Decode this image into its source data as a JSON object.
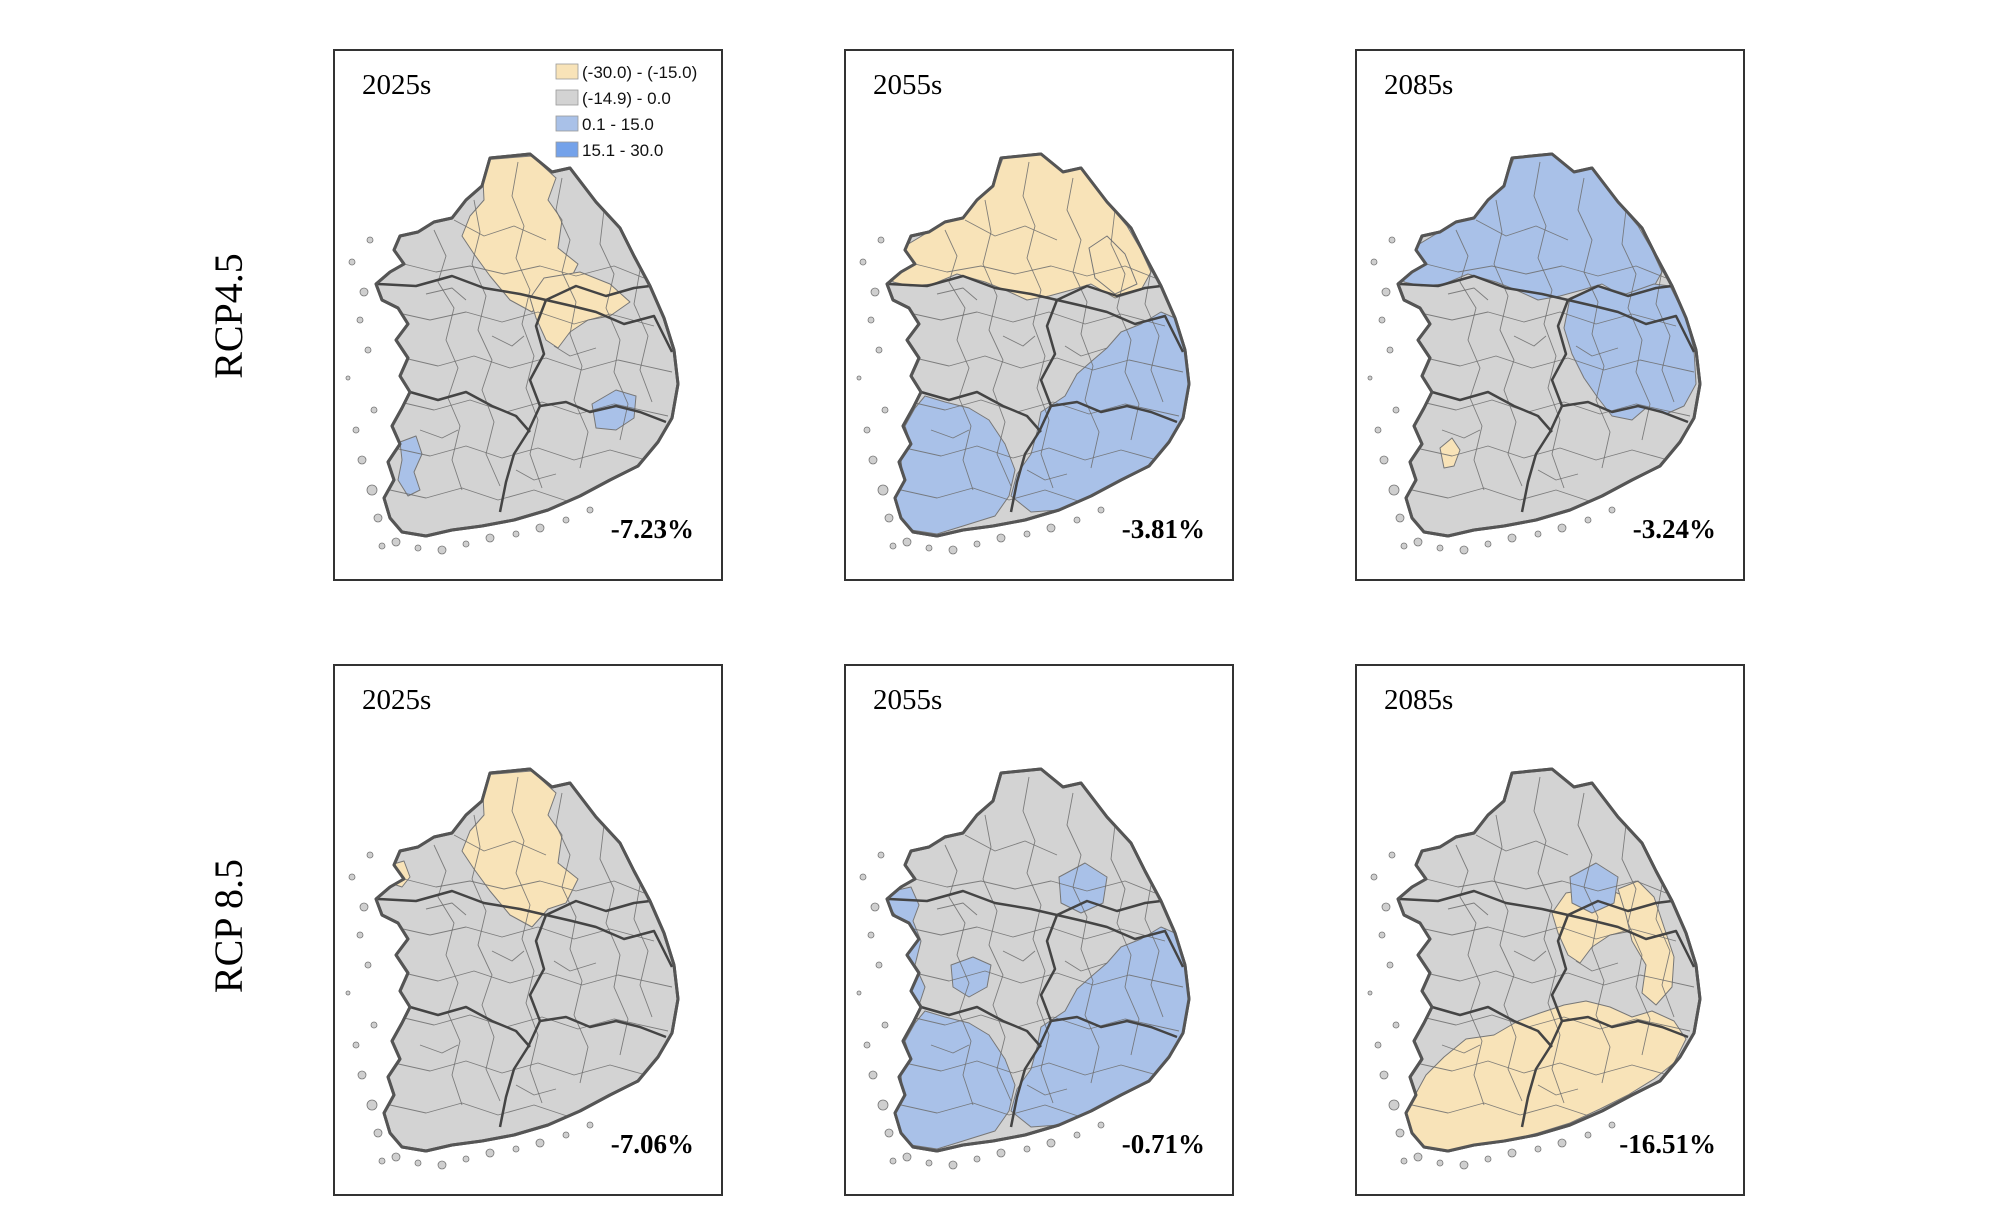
{
  "figure": {
    "rows": [
      {
        "id": "rcp45",
        "label": "RCP4.5"
      },
      {
        "id": "rcp85",
        "label": "RCP 8.5"
      }
    ],
    "legend": {
      "items": [
        {
          "range": "(-30.0) - (-15.0)",
          "color": "#f8e3b8",
          "class": "decrease-strong"
        },
        {
          "range": "(-14.9) - 0.0",
          "color": "#d3d3d3",
          "class": "decrease-weak"
        },
        {
          "range": "0.1 - 15.0",
          "color": "#a9c1e8",
          "class": "increase-weak"
        },
        {
          "range": "15.1 - 30.0",
          "color": "#74a2ea",
          "class": "increase-strong"
        }
      ]
    },
    "panels": [
      {
        "row": "rcp45",
        "period": "2025s",
        "change": "-7.23%",
        "zones": [
          {
            "name": "northwest-inland",
            "class": "decrease-strong"
          },
          {
            "name": "central-band",
            "class": "decrease-strong"
          },
          {
            "name": "southeast-basin",
            "class": "increase-weak"
          },
          {
            "name": "southwest-coast",
            "class": "increase-weak"
          }
        ]
      },
      {
        "row": "rcp45",
        "period": "2055s",
        "change": "-3.81%",
        "zones": [
          {
            "name": "northern-region",
            "class": "decrease-strong"
          },
          {
            "name": "eastern-strip",
            "class": "decrease-strong"
          },
          {
            "name": "southeast-region",
            "class": "increase-weak"
          },
          {
            "name": "southwest-region",
            "class": "increase-weak"
          }
        ]
      },
      {
        "row": "rcp45",
        "period": "2085s",
        "change": "-3.24%",
        "zones": [
          {
            "name": "northern-region",
            "class": "increase-weak"
          },
          {
            "name": "eastern-region",
            "class": "increase-weak"
          },
          {
            "name": "southwest-spot",
            "class": "decrease-strong"
          }
        ]
      },
      {
        "row": "rcp85",
        "period": "2025s",
        "change": "-7.06%",
        "zones": [
          {
            "name": "northwest-spot",
            "class": "decrease-strong"
          },
          {
            "name": "northwest-inland",
            "class": "decrease-strong"
          }
        ]
      },
      {
        "row": "rcp85",
        "period": "2055s",
        "change": "-0.71%",
        "zones": [
          {
            "name": "west-coast",
            "class": "increase-weak"
          },
          {
            "name": "northeast-spot",
            "class": "increase-weak"
          },
          {
            "name": "southeast-region",
            "class": "increase-weak"
          },
          {
            "name": "southwest-region",
            "class": "increase-weak"
          },
          {
            "name": "central-west",
            "class": "increase-weak"
          }
        ]
      },
      {
        "row": "rcp85",
        "period": "2085s",
        "change": "-16.51%",
        "zones": [
          {
            "name": "central-band",
            "class": "decrease-strong"
          },
          {
            "name": "east-coast",
            "class": "decrease-strong"
          },
          {
            "name": "south-region",
            "class": "decrease-strong"
          },
          {
            "name": "northeast-spot",
            "class": "increase-weak"
          }
        ]
      }
    ]
  }
}
